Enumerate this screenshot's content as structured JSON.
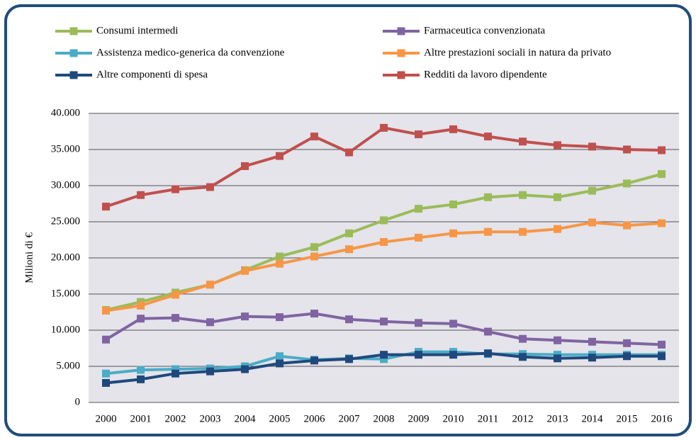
{
  "chart_data": {
    "type": "line",
    "y_label": "Milioni di €",
    "categories": [
      "2000",
      "2001",
      "2002",
      "2003",
      "2004",
      "2005",
      "2006",
      "2007",
      "2008",
      "2009",
      "2010",
      "2011",
      "2012",
      "2013",
      "2014",
      "2015",
      "2016"
    ],
    "ylim": [
      0,
      40000
    ],
    "yticks": [
      0,
      {
        "value": 5000,
        "label": "5.000"
      },
      {
        "value": 10000,
        "label": "10.000"
      },
      {
        "value": 15000,
        "label": "15.000"
      },
      {
        "value": 20000,
        "label": "20.000"
      },
      {
        "value": 25000,
        "label": "25.000"
      },
      {
        "value": 30000,
        "label": "30.000"
      },
      {
        "value": 35000,
        "label": "35.000"
      },
      {
        "value": 40000,
        "label": "40.000"
      }
    ],
    "grid": true,
    "series": [
      {
        "name": "Consumi intermedi",
        "color": "#9bbb59",
        "values": [
          12800,
          13900,
          15200,
          16300,
          18300,
          20200,
          21500,
          23400,
          25200,
          26800,
          27400,
          28400,
          28700,
          28400,
          29300,
          30300,
          31600
        ]
      },
      {
        "name": "Farmaceutica convenzionata",
        "color": "#8064a2",
        "values": [
          8700,
          11600,
          11700,
          11100,
          11900,
          11800,
          12300,
          11500,
          11200,
          11000,
          10900,
          9800,
          8800,
          8600,
          8400,
          8200,
          8000
        ]
      },
      {
        "name": "Assistenza medico-generica da convenzione",
        "color": "#4bacc6",
        "values": [
          4000,
          4500,
          4600,
          4700,
          5000,
          6400,
          5900,
          6100,
          6000,
          7000,
          7000,
          6700,
          6700,
          6600,
          6600,
          6600,
          6600
        ]
      },
      {
        "name": "Altre prestazioni sociali in natura da privato",
        "color": "#f79646",
        "values": [
          12700,
          13400,
          14900,
          16300,
          18200,
          19200,
          20200,
          21200,
          22200,
          22800,
          23400,
          23600,
          23600,
          24000,
          24900,
          24500,
          24800
        ]
      },
      {
        "name": "Altre componenti di spesa",
        "color": "#1f497d",
        "values": [
          2700,
          3200,
          4000,
          4300,
          4600,
          5400,
          5800,
          6000,
          6600,
          6600,
          6600,
          6800,
          6300,
          6100,
          6200,
          6400,
          6400
        ]
      },
      {
        "name": "Redditi da lavoro dipendente",
        "color": "#c0504d",
        "values": [
          27100,
          28700,
          29500,
          29800,
          32700,
          34100,
          36800,
          34600,
          38000,
          37100,
          37800,
          36800,
          36100,
          35600,
          35400,
          35000,
          34900
        ]
      }
    ]
  }
}
